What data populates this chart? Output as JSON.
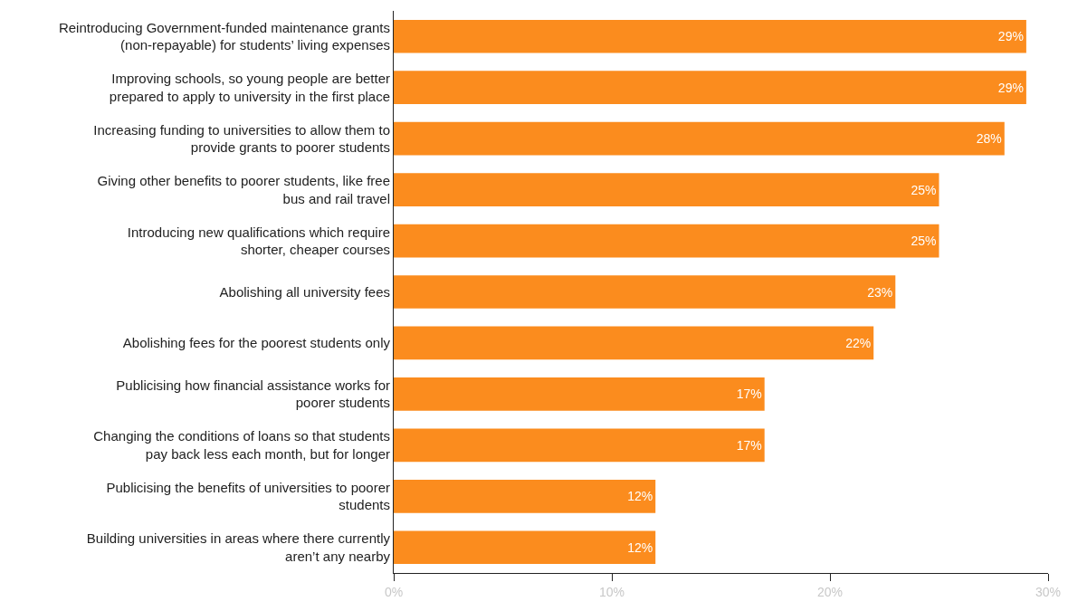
{
  "chart_data": {
    "type": "bar",
    "orientation": "horizontal",
    "categories": [
      "Reintroducing Government-funded maintenance grants (non-repayable) for students’ living expenses",
      "Improving schools, so young people are better prepared to apply to university in the first place",
      "Increasing funding to universities to allow them to provide grants to poorer students",
      "Giving other benefits to poorer students, like free bus and rail travel",
      "Introducing new qualifications which require shorter, cheaper courses",
      "Abolishing all university fees",
      "Abolishing fees for the poorest students only",
      "Publicising how financial assistance works for poorer students",
      "Changing the conditions of loans so that students pay back less each month, but for longer",
      "Publicising the benefits of universities to poorer students",
      "Building universities in areas where there currently aren’t any nearby"
    ],
    "values": [
      29,
      29,
      28,
      25,
      25,
      23,
      22,
      17,
      17,
      12,
      12
    ],
    "value_labels": [
      "29%",
      "29%",
      "28%",
      "25%",
      "25%",
      "23%",
      "22%",
      "17%",
      "17%",
      "12%",
      "12%"
    ],
    "color": "#fb8c1e",
    "xlim": [
      0,
      30
    ],
    "xticks": [
      {
        "value": 0,
        "label": "0%"
      },
      {
        "value": 10,
        "label": "10%"
      },
      {
        "value": 20,
        "label": "20%"
      },
      {
        "value": 30,
        "label": "30%"
      }
    ],
    "grid": false
  }
}
